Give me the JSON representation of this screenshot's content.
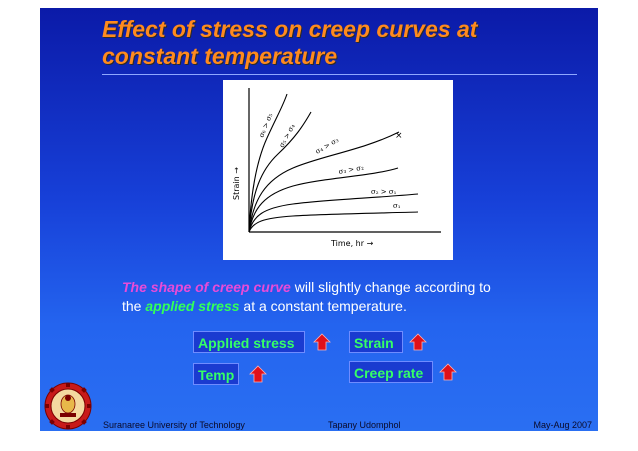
{
  "title": {
    "line1": "Effect of stress on creep curves at",
    "line2": "constant temperature"
  },
  "figure": {
    "ylabel": "Strain →",
    "xlabel": "Time, hr →",
    "curve_labels": [
      "σ₆ > σ₅",
      "σ₅ > σ₄",
      "σ₄ > σ₃",
      "σ₃ > σ₂",
      "σ₂ > σ₁",
      "σ₁"
    ]
  },
  "description": {
    "emphasis1": "The shape of creep curve",
    "text1": " will slightly change according to",
    "text2": "the ",
    "emphasis2": "applied stress",
    "text3": " at a constant temperature."
  },
  "tags": {
    "applied_stress": "Applied stress",
    "strain": "Strain",
    "temp": "Temp",
    "creep_rate": "Creep rate"
  },
  "footer": {
    "left": "Suranaree University of Technology",
    "center": "Tapany  Udomphol",
    "right": "May-Aug   2007"
  },
  "colors": {
    "title": "#ff8a1e",
    "emphasis_pink": "#e84bd8",
    "emphasis_green": "#32ff5a",
    "arrow": "#e0101a"
  }
}
